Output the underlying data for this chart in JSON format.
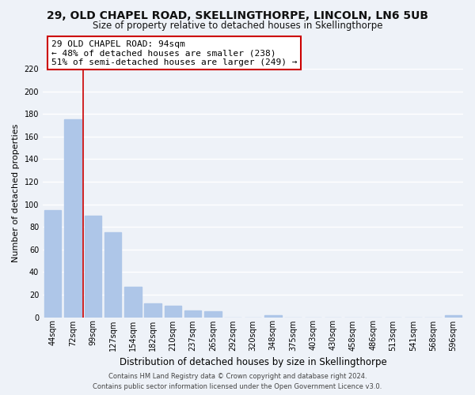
{
  "title": "29, OLD CHAPEL ROAD, SKELLINGTHORPE, LINCOLN, LN6 5UB",
  "subtitle": "Size of property relative to detached houses in Skellingthorpe",
  "xlabel": "Distribution of detached houses by size in Skellingthorpe",
  "ylabel": "Number of detached properties",
  "bar_labels": [
    "44sqm",
    "72sqm",
    "99sqm",
    "127sqm",
    "154sqm",
    "182sqm",
    "210sqm",
    "237sqm",
    "265sqm",
    "292sqm",
    "320sqm",
    "348sqm",
    "375sqm",
    "403sqm",
    "430sqm",
    "458sqm",
    "486sqm",
    "513sqm",
    "541sqm",
    "568sqm",
    "596sqm"
  ],
  "bar_values": [
    95,
    175,
    90,
    75,
    27,
    12,
    10,
    6,
    5,
    0,
    0,
    2,
    0,
    0,
    0,
    0,
    0,
    0,
    0,
    0,
    2
  ],
  "bar_color": "#aec6e8",
  "vline_x_idx": 1,
  "vline_color": "#cc0000",
  "annotation_title": "29 OLD CHAPEL ROAD: 94sqm",
  "annotation_line1": "← 48% of detached houses are smaller (238)",
  "annotation_line2": "51% of semi-detached houses are larger (249) →",
  "annotation_box_color": "#ffffff",
  "annotation_box_edgecolor": "#cc0000",
  "ylim": [
    0,
    220
  ],
  "yticks": [
    0,
    20,
    40,
    60,
    80,
    100,
    120,
    140,
    160,
    180,
    200,
    220
  ],
  "footer_line1": "Contains HM Land Registry data © Crown copyright and database right 2024.",
  "footer_line2": "Contains public sector information licensed under the Open Government Licence v3.0.",
  "background_color": "#eef2f8",
  "grid_color": "#ffffff",
  "title_fontsize": 10,
  "subtitle_fontsize": 8.5,
  "xlabel_fontsize": 8.5,
  "ylabel_fontsize": 8,
  "tick_fontsize": 7,
  "annot_fontsize": 8,
  "footer_fontsize": 6
}
